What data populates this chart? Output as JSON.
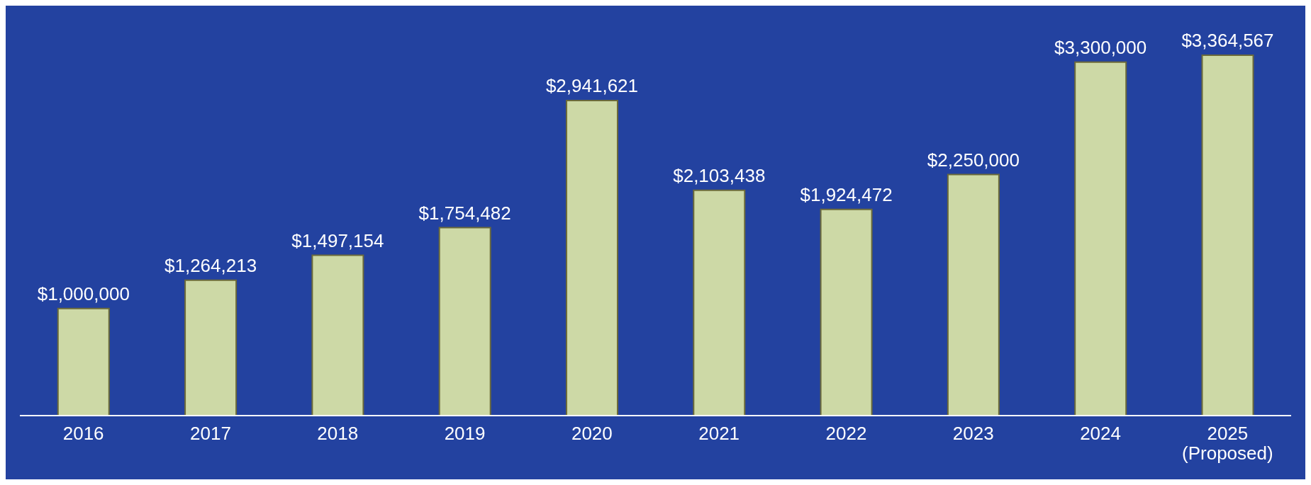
{
  "chart_data": {
    "type": "bar",
    "categories": [
      "2016",
      "2017",
      "2018",
      "2019",
      "2020",
      "2021",
      "2022",
      "2023",
      "2024",
      "2025 (Proposed)"
    ],
    "values": [
      1000000,
      1264213,
      1497154,
      1754482,
      2941621,
      2103438,
      1924472,
      2250000,
      3300000,
      3364567
    ],
    "value_labels": [
      "$1,000,000",
      "$1,264,213",
      "$1,497,154",
      "$1,754,482",
      "$2,941,621",
      "$2,103,438",
      "$1,924,472",
      "$2,250,000",
      "$3,300,000",
      "$3,364,567"
    ],
    "color": "#cdd9a6"
  }
}
